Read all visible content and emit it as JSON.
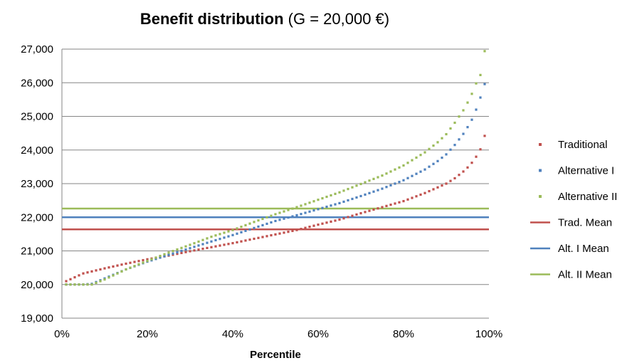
{
  "chart_data": {
    "type": "scatter",
    "title_bold": "Benefit distribution",
    "title_rest": " (G = 20,000 €)",
    "xlabel": "Percentile",
    "ylabel": "",
    "xlim": [
      0,
      1
    ],
    "ylim": [
      19000,
      27000
    ],
    "x_ticks": [
      "0%",
      "20%",
      "40%",
      "60%",
      "80%",
      "100%"
    ],
    "y_ticks": [
      "19,000",
      "20,000",
      "21,000",
      "22,000",
      "23,000",
      "24,000",
      "25,000",
      "26,000",
      "27,000"
    ],
    "grid": "horizontal",
    "legend_position": "right",
    "series": [
      {
        "name": "Traditional",
        "kind": "points",
        "color": "#c0504d",
        "x": [
          0.01,
          0.05,
          0.1,
          0.15,
          0.2,
          0.25,
          0.3,
          0.35,
          0.4,
          0.45,
          0.5,
          0.55,
          0.6,
          0.65,
          0.7,
          0.75,
          0.8,
          0.85,
          0.9,
          0.92,
          0.94,
          0.95,
          0.96,
          0.97,
          0.98,
          0.99
        ],
        "y": [
          20100,
          20330,
          20480,
          20620,
          20750,
          20860,
          20990,
          21110,
          21230,
          21360,
          21490,
          21620,
          21780,
          21930,
          22120,
          22300,
          22480,
          22720,
          23000,
          23160,
          23360,
          23480,
          23620,
          23800,
          24020,
          24420
        ]
      },
      {
        "name": "Alternative I",
        "kind": "points",
        "color": "#4f81bd",
        "x": [
          0.01,
          0.03,
          0.05,
          0.07,
          0.1,
          0.15,
          0.2,
          0.25,
          0.3,
          0.35,
          0.4,
          0.45,
          0.5,
          0.55,
          0.6,
          0.65,
          0.7,
          0.75,
          0.8,
          0.85,
          0.88,
          0.9,
          0.92,
          0.94,
          0.95,
          0.96,
          0.97,
          0.98,
          0.99
        ],
        "y": [
          20000,
          20000,
          20000,
          20020,
          20180,
          20450,
          20680,
          20880,
          21080,
          21280,
          21470,
          21680,
          21890,
          22060,
          22240,
          22420,
          22630,
          22850,
          23100,
          23420,
          23670,
          23870,
          24150,
          24480,
          24680,
          24900,
          25200,
          25560,
          25960
        ]
      },
      {
        "name": "Alternative II",
        "kind": "points",
        "color": "#9bbb59",
        "x": [
          0.01,
          0.03,
          0.05,
          0.07,
          0.1,
          0.15,
          0.2,
          0.25,
          0.3,
          0.35,
          0.4,
          0.45,
          0.5,
          0.55,
          0.6,
          0.65,
          0.7,
          0.75,
          0.8,
          0.85,
          0.88,
          0.9,
          0.92,
          0.94,
          0.95,
          0.96,
          0.97,
          0.98,
          0.99
        ],
        "y": [
          20000,
          20000,
          20000,
          20000,
          20150,
          20450,
          20700,
          20950,
          21180,
          21420,
          21620,
          21860,
          22090,
          22300,
          22520,
          22740,
          22990,
          23240,
          23540,
          23930,
          24230,
          24470,
          24810,
          25180,
          25410,
          25670,
          25980,
          26230,
          26940
        ]
      },
      {
        "name": "Trad. Mean",
        "kind": "hline",
        "color": "#c0504d",
        "value": 21640
      },
      {
        "name": "Alt. I Mean",
        "kind": "hline",
        "color": "#4f81bd",
        "value": 22000
      },
      {
        "name": "Alt. II Mean",
        "kind": "hline",
        "color": "#9bbb59",
        "value": 22260
      }
    ]
  }
}
